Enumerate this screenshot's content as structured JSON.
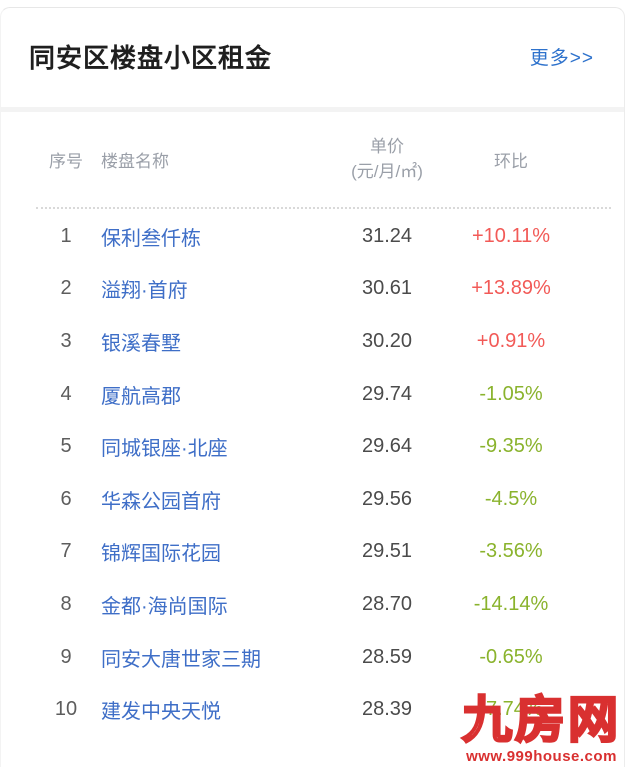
{
  "card": {
    "title": "同安区楼盘小区租金",
    "more_label": "更多>>"
  },
  "table": {
    "headers": {
      "rank": "序号",
      "name": "楼盘名称",
      "price_line1": "单价",
      "price_line2": "(元/月/㎡)",
      "change": "环比"
    },
    "rows": [
      {
        "rank": "1",
        "name": "保利叁仟栋",
        "price": "31.24",
        "change": "+10.11%",
        "direction": "up"
      },
      {
        "rank": "2",
        "name": "溢翔·首府",
        "price": "30.61",
        "change": "+13.89%",
        "direction": "up"
      },
      {
        "rank": "3",
        "name": "银溪春墅",
        "price": "30.20",
        "change": "+0.91%",
        "direction": "up"
      },
      {
        "rank": "4",
        "name": "厦航高郡",
        "price": "29.74",
        "change": "-1.05%",
        "direction": "down"
      },
      {
        "rank": "5",
        "name": "同城银座·北座",
        "price": "29.64",
        "change": "-9.35%",
        "direction": "down"
      },
      {
        "rank": "6",
        "name": "华森公园首府",
        "price": "29.56",
        "change": "-4.5%",
        "direction": "down"
      },
      {
        "rank": "7",
        "name": "锦辉国际花园",
        "price": "29.51",
        "change": "-3.56%",
        "direction": "down"
      },
      {
        "rank": "8",
        "name": "金都·海尚国际",
        "price": "28.70",
        "change": "-14.14%",
        "direction": "down"
      },
      {
        "rank": "9",
        "name": "同安大唐世家三期",
        "price": "28.59",
        "change": "-0.65%",
        "direction": "down"
      },
      {
        "rank": "10",
        "name": "建发中央天悦",
        "price": "28.39",
        "change": "-7.74%",
        "direction": "down"
      }
    ]
  },
  "watermark": {
    "site_name": "九房网",
    "site_url": "www.999house.com"
  },
  "colors": {
    "up": "#f25a57",
    "down": "#8ab32d",
    "link": "#2e72cc",
    "name_link": "#3e6ec7",
    "watermark": "#d93030"
  }
}
